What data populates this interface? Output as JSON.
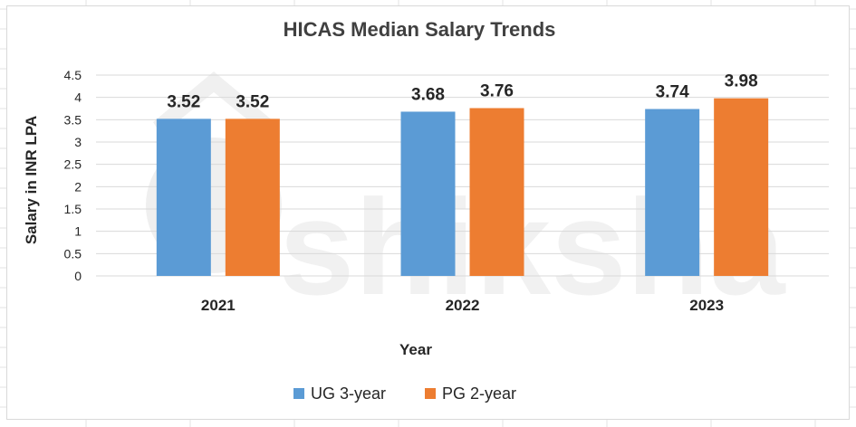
{
  "chart_data": {
    "type": "bar",
    "title": "HICAS Median Salary Trends",
    "xlabel": "Year",
    "ylabel": "Salary in INR LPA",
    "categories": [
      "2021",
      "2022",
      "2023"
    ],
    "series": [
      {
        "name": "UG 3-year",
        "color": "#5b9bd5",
        "values": [
          3.52,
          3.68,
          3.74
        ]
      },
      {
        "name": "PG 2-year",
        "color": "#ed7d31",
        "values": [
          3.52,
          3.76,
          3.98
        ]
      }
    ],
    "ylim": [
      0,
      4.5
    ],
    "yticks": [
      "0",
      "0.5",
      "1",
      "1.5",
      "2",
      "2.5",
      "3",
      "3.5",
      "4",
      "4.5"
    ],
    "grid": true,
    "legend_position": "bottom",
    "watermark": "shiksha"
  }
}
